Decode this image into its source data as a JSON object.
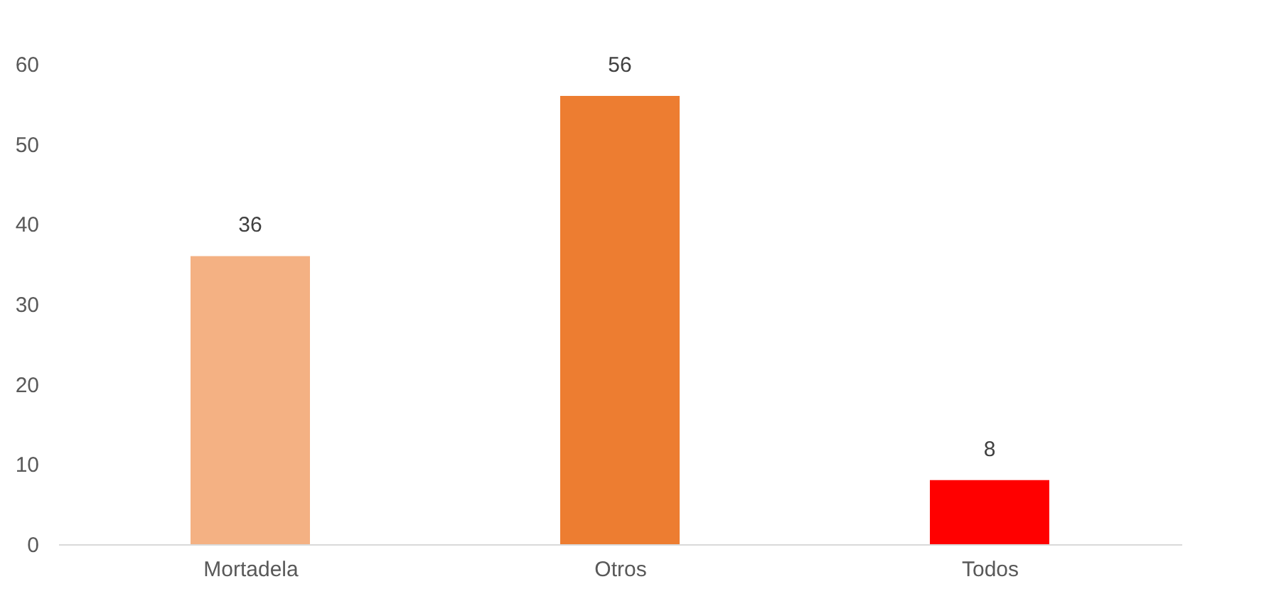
{
  "chart_data": {
    "type": "bar",
    "categories": [
      "Mortadela",
      "Otros",
      "Todos"
    ],
    "values": [
      36,
      56,
      8
    ],
    "colors": [
      "#f4b183",
      "#ed7d31",
      "#ff0000"
    ],
    "ylim": [
      0,
      60
    ],
    "yticks": [
      0,
      10,
      20,
      30,
      40,
      50,
      60
    ],
    "grid": false,
    "data_labels": true
  }
}
